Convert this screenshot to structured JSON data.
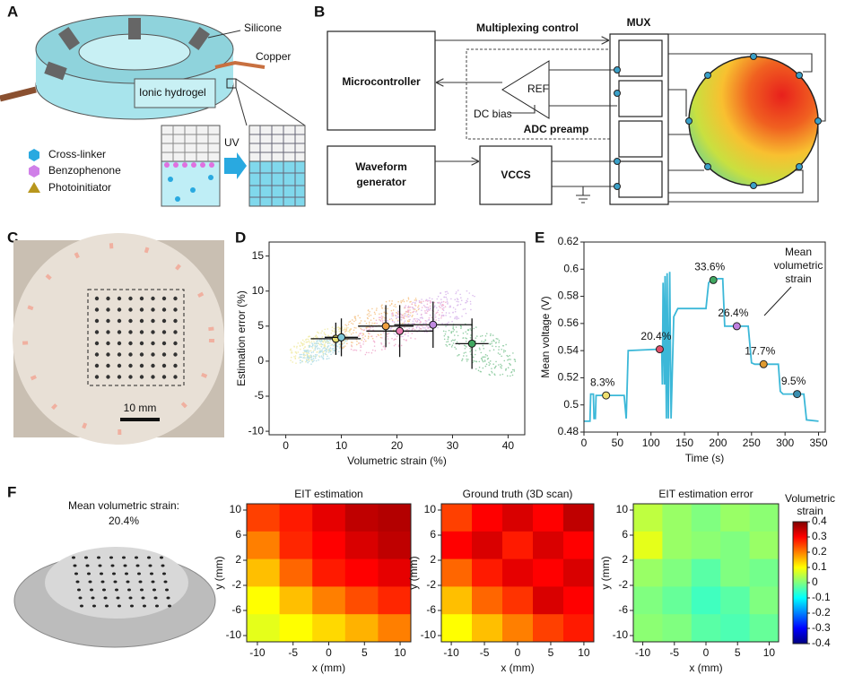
{
  "panels": {
    "A": {
      "letter": "A",
      "silicone": "Silicone",
      "copper": "Copper",
      "hydrogel": "Ionic hydrogel",
      "uv": "UV",
      "legend": [
        "Cross-linker",
        "Benzophenone",
        "Photoinitiator"
      ]
    },
    "B": {
      "letter": "B",
      "multiplexing": "Multiplexing control",
      "mux": "MUX",
      "microcontroller": "Microcontroller",
      "ref": "REF",
      "dc_bias": "DC bias",
      "adc": "ADC preamp",
      "waveform": [
        "Waveform",
        "generator"
      ],
      "vccs": "VCCS"
    },
    "C": {
      "letter": "C",
      "scale": "10 mm"
    },
    "D": {
      "letter": "D"
    },
    "E": {
      "letter": "E"
    },
    "F": {
      "letter": "F",
      "caption": "Mean volumetric strain:",
      "value": "20.4%"
    }
  },
  "chart_data": [
    {
      "type": "scatter",
      "xlabel": "Volumetric strain (%)",
      "ylabel": "Estimation error (%)",
      "xlim": [
        -3,
        43
      ],
      "ylim": [
        -10.5,
        17
      ],
      "xticks": [
        0,
        10,
        20,
        30,
        40
      ],
      "yticks": [
        -10,
        -5,
        0,
        5,
        10,
        15
      ],
      "points": [
        {
          "x": 9,
          "y": 3.2,
          "xerr": 4.5,
          "yerr": 2.3,
          "color": "#e8e070"
        },
        {
          "x": 10,
          "y": 3.4,
          "xerr": 3,
          "yerr": 2.7,
          "color": "#7fc8d8"
        },
        {
          "x": 18,
          "y": 5,
          "xerr": 5,
          "yerr": 3,
          "color": "#f0a040"
        },
        {
          "x": 20.5,
          "y": 4.3,
          "xerr": 6,
          "yerr": 3.7,
          "color": "#e87ab0"
        },
        {
          "x": 26.5,
          "y": 5.2,
          "xerr": 7,
          "yerr": 3.3,
          "color": "#c08ae0"
        },
        {
          "x": 33.5,
          "y": 2.5,
          "xerr": 3,
          "yerr": 3.6,
          "color": "#40a860"
        }
      ]
    },
    {
      "type": "line",
      "xlabel": "Time (s)",
      "ylabel": "Mean voltage (V)",
      "xlim": [
        0,
        360
      ],
      "ylim": [
        0.48,
        0.62
      ],
      "xticks": [
        0,
        50,
        100,
        150,
        200,
        250,
        300,
        350
      ],
      "yticks": [
        0.48,
        0.5,
        0.52,
        0.54,
        0.56,
        0.58,
        0.6,
        0.62
      ],
      "x": [
        0,
        9,
        10,
        14,
        15,
        17,
        18,
        60,
        63,
        66,
        110,
        116,
        117,
        118,
        120,
        121,
        123,
        124,
        126,
        128,
        130,
        134,
        140,
        182,
        186,
        190,
        200,
        207,
        210,
        228,
        245,
        250,
        255,
        270,
        290,
        293,
        297,
        318,
        328,
        332,
        350
      ],
      "series": [
        {
          "color": "#3cb8d8",
          "values": [
            0.488,
            0.488,
            0.508,
            0.508,
            0.49,
            0.49,
            0.507,
            0.507,
            0.49,
            0.54,
            0.541,
            0.541,
            0.515,
            0.59,
            0.515,
            0.595,
            0.49,
            0.597,
            0.49,
            0.598,
            0.49,
            0.565,
            0.571,
            0.571,
            0.59,
            0.592,
            0.593,
            0.593,
            0.558,
            0.558,
            0.558,
            0.531,
            0.53,
            0.53,
            0.53,
            0.51,
            0.508,
            0.508,
            0.508,
            0.489,
            0.488
          ]
        }
      ],
      "points": [
        {
          "x": 33,
          "y": 0.507,
          "label": "8.3%",
          "color": "#f0e070"
        },
        {
          "x": 113,
          "y": 0.541,
          "label": "20.4%",
          "color": "#e0506a"
        },
        {
          "x": 193,
          "y": 0.592,
          "label": "33.6%",
          "color": "#40a860"
        },
        {
          "x": 228,
          "y": 0.558,
          "label": "26.4%",
          "color": "#c080e0"
        },
        {
          "x": 268,
          "y": 0.53,
          "label": "17.7%",
          "color": "#e09a30"
        },
        {
          "x": 318,
          "y": 0.508,
          "label": "9.5%",
          "color": "#3a8fb0"
        }
      ],
      "annotation": [
        "Mean",
        "volumetric",
        "strain"
      ]
    },
    {
      "type": "heatmap",
      "title": "EIT estimation",
      "xlabel": "x (mm)",
      "ylabel": "y (mm)",
      "xlim": [
        -11.5,
        11.5
      ],
      "ylim": [
        -11,
        11
      ],
      "xticks": [
        -10,
        -5,
        0,
        5,
        10
      ],
      "yticks": [
        10,
        6,
        2,
        -2,
        -6,
        -10
      ],
      "clim": [
        -0.4,
        0.4
      ],
      "values": [
        [
          0.25,
          0.28,
          0.32,
          0.35,
          0.36
        ],
        [
          0.2,
          0.27,
          0.3,
          0.33,
          0.35
        ],
        [
          0.15,
          0.22,
          0.28,
          0.3,
          0.32
        ],
        [
          0.1,
          0.15,
          0.2,
          0.24,
          0.27
        ],
        [
          0.08,
          0.1,
          0.13,
          0.16,
          0.2
        ]
      ]
    },
    {
      "type": "heatmap",
      "title": "Ground truth (3D scan)",
      "xlabel": "x (mm)",
      "ylabel": "y (mm)",
      "xlim": [
        -11.5,
        11.5
      ],
      "ylim": [
        -11,
        11
      ],
      "xticks": [
        -10,
        -5,
        0,
        5,
        10
      ],
      "yticks": [
        10,
        6,
        2,
        -2,
        -6,
        -10
      ],
      "clim": [
        -0.4,
        0.4
      ],
      "values": [
        [
          0.25,
          0.3,
          0.33,
          0.3,
          0.35
        ],
        [
          0.3,
          0.33,
          0.28,
          0.33,
          0.3
        ],
        [
          0.22,
          0.28,
          0.32,
          0.3,
          0.33
        ],
        [
          0.15,
          0.22,
          0.26,
          0.33,
          0.3
        ],
        [
          0.1,
          0.15,
          0.2,
          0.25,
          0.28
        ]
      ]
    },
    {
      "type": "heatmap",
      "title": "EIT estimation error",
      "xlabel": "x (mm)",
      "ylabel": "y (mm)",
      "xlim": [
        -11.5,
        11.5
      ],
      "ylim": [
        -11,
        11
      ],
      "xticks": [
        -10,
        -5,
        0,
        5,
        10
      ],
      "yticks": [
        10,
        6,
        2,
        -2,
        -6,
        -10
      ],
      "clim": [
        -0.4,
        0.4
      ],
      "values": [
        [
          0.05,
          0.02,
          0,
          0.02,
          0.01
        ],
        [
          0.08,
          0.02,
          0.01,
          0,
          0.02
        ],
        [
          0.02,
          0,
          -0.03,
          0,
          -0.01
        ],
        [
          0,
          -0.02,
          -0.05,
          -0.03,
          0
        ],
        [
          0.01,
          0,
          -0.03,
          -0.04,
          -0.02
        ]
      ],
      "colorbar": {
        "title": [
          "Volumetric",
          "strain"
        ],
        "ticks": [
          0.4,
          0.3,
          0.2,
          0.1,
          0,
          -0.1,
          -0.2,
          -0.3,
          -0.4
        ]
      }
    }
  ]
}
